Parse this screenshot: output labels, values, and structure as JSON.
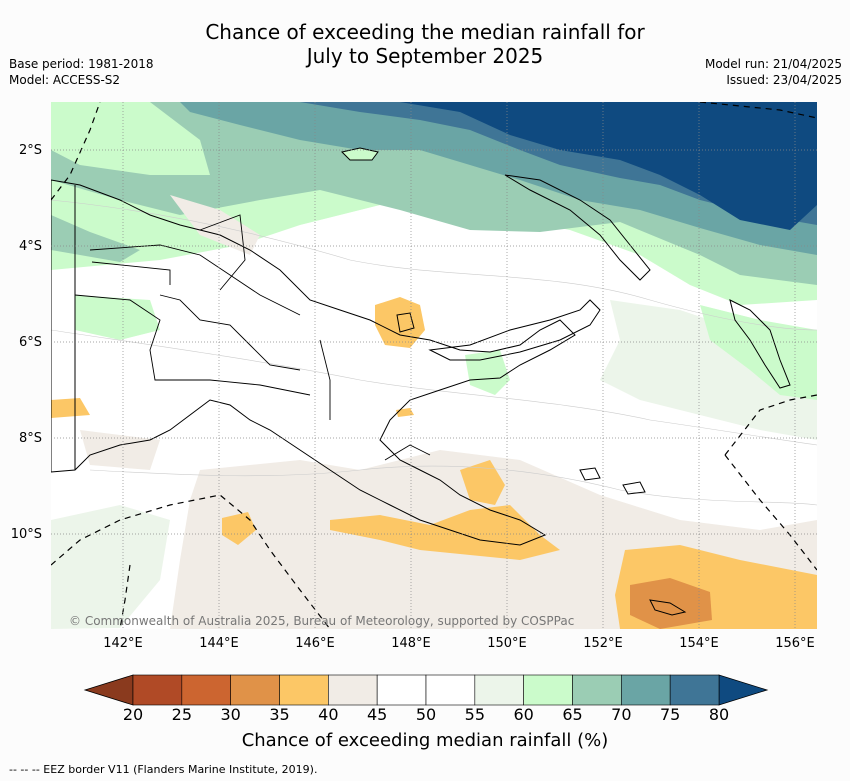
{
  "header": {
    "title_line1": "Chance of exceeding the median rainfall for",
    "title_line2": "July to September 2025",
    "base_period": "Base period: 1981-2018",
    "model": "Model: ACCESS-S2",
    "model_run": "Model run: 21/04/2025",
    "issued": "Issued: 23/04/2025"
  },
  "map": {
    "lat_labels": [
      "2°S",
      "4°S",
      "6°S",
      "8°S",
      "10°S"
    ],
    "lon_labels": [
      "142°E",
      "144°E",
      "146°E",
      "148°E",
      "150°E",
      "152°E",
      "154°E",
      "156°E"
    ],
    "copyright": "© Commonwealth of Australia 2025, Bureau of Meteorology, supported by COSPPac"
  },
  "colorbar": {
    "ticks": [
      "20",
      "25",
      "30",
      "35",
      "40",
      "45",
      "50",
      "55",
      "60",
      "65",
      "70",
      "75",
      "80"
    ],
    "colors": [
      "#b04a26",
      "#cc6530",
      "#e09248",
      "#fcc766",
      "#f1ece6",
      "#ffffff",
      "#ffffff",
      "#ecf5ea",
      "#cbfbcb",
      "#9bcdb4",
      "#6aa5a5",
      "#3f7596"
    ],
    "under_color": "#8a3a1e",
    "over_color": "#0f4a80",
    "label": "Chance of exceeding median rainfall (%)"
  },
  "footnote": "--  --  -- EEZ border V11 (Flanders Marine Institute, 2019)."
}
